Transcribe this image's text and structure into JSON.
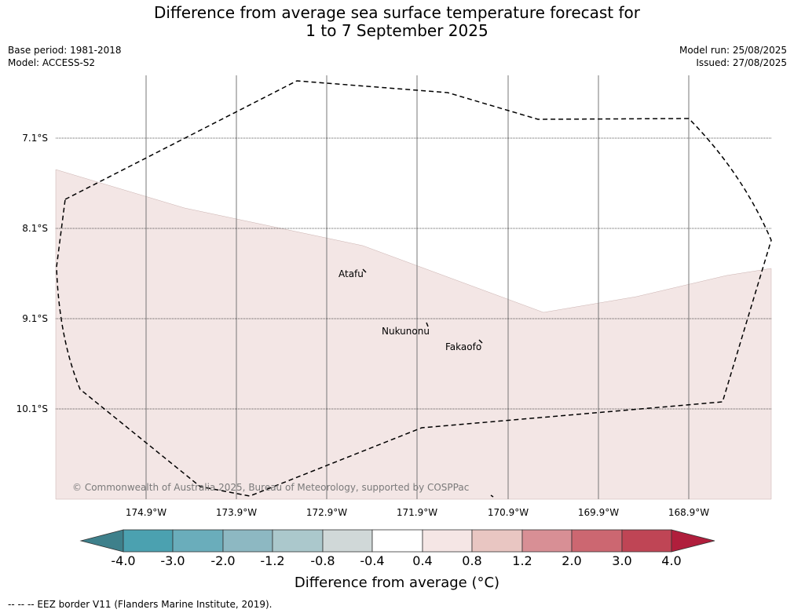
{
  "title_line1": "Difference from average sea surface temperature forecast for",
  "title_line2": "1 to 7 September 2025",
  "base_period": "Base period: 1981-2018",
  "model": "Model: ACCESS-S2",
  "model_run": "Model run: 25/08/2025",
  "issued": "Issued: 27/08/2025",
  "lat_labels": [
    "7.1°S",
    "8.1°S",
    "9.1°S",
    "10.1°S"
  ],
  "lon_labels": [
    "174.9°W",
    "173.9°W",
    "172.9°W",
    "171.9°W",
    "170.9°W",
    "169.9°W",
    "168.9°W"
  ],
  "places": [
    "Atafu",
    "Nukunonu",
    "Fakaofo"
  ],
  "copyright": "© Commonwealth of Australia 2025, Bureau of Meteorology, supported by COSPPac",
  "colorbar": {
    "title": "Difference from average (°C)",
    "ticks": [
      "-4.0",
      "-3.0",
      "-2.0",
      "-1.2",
      "-0.8",
      "-0.4",
      "0.4",
      "0.8",
      "1.2",
      "2.0",
      "3.0",
      "4.0"
    ],
    "colors": [
      "#3e808b",
      "#4ba1b0",
      "#6aadbb",
      "#8db8c2",
      "#abc8cc",
      "#d0d8d8",
      "#ffffff",
      "#f5e6e5",
      "#e9c6c2",
      "#d88f95",
      "#cc6771",
      "#bf4555",
      "#b01e3c"
    ]
  },
  "shading": {
    "fill_color": "#f3e6e5",
    "category": "0.4 to 0.8"
  },
  "footer": "-- -- -- EEZ border V11 (Flanders Marine Institute, 2019)."
}
